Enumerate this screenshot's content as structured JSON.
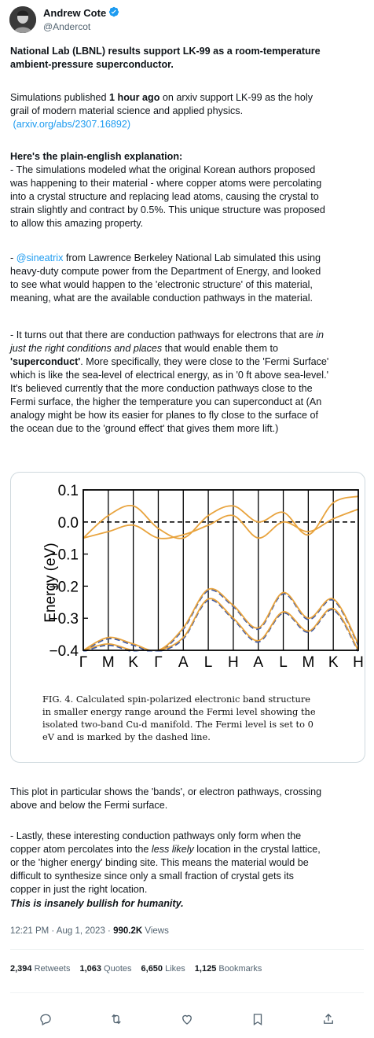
{
  "author": {
    "name": "Andrew Cote",
    "handle": "@Andercot"
  },
  "tweet": {
    "headline_1": "National Lab (LBNL) results support LK-99 as a room-temperature",
    "headline_2": "ambient-pressure superconductor.",
    "p1_a": "Simulations published ",
    "p1_b": "1 hour ago",
    "p1_c": " on arxiv support LK-99 as the holy",
    "p1_2": "grail of modern material science and applied physics.",
    "p1_link": "(arxiv.org/abs/2307.16892)",
    "plain_heading": "Here's the plain-english explanation:",
    "p2_1": "- The simulations modeled what the original Korean authors proposed",
    "p2_2": "was happening to their material - where copper atoms were percolating",
    "p2_3": "into a crystal structure and replacing lead atoms, causing the crystal to",
    "p2_4": "strain slightly and contract by 0.5%. This unique structure was proposed",
    "p2_5": "to allow this amazing property.",
    "p3_mention": "@sineatrix",
    "p3_1": "- ",
    "p3_1b": " from Lawrence Berkeley National Lab simulated this using",
    "p3_2": "heavy-duty compute power from the Department of Energy, and looked",
    "p3_3": "to see what would happen to the 'electronic structure' of this material,",
    "p3_4": "meaning, what are the available conduction pathways in the material.",
    "p4_1a": "- It turns out that there are conduction pathways for electrons that are ",
    "p4_1b": "in",
    "p4_2a": "just the right conditions and places",
    "p4_2b": " that would enable them to",
    "p4_3a": "'superconduct'",
    "p4_3b": ". More specifically, they were close to the 'Fermi Surface'",
    "p4_4": "which is like the sea-level of electrical energy, as in '0 ft above sea-level.'",
    "p4_5": "It's believed currently that the more conduction pathways close to the",
    "p4_6": "Fermi surface, the higher the temperature you can superconduct at (An",
    "p4_7": "analogy might be how its easier for planes to fly close to the surface of",
    "p4_8": "the ocean due to the 'ground effect' that gives them more lift.)",
    "p5_1": "This plot in particular shows the 'bands', or electron pathways, crossing",
    "p5_2": "above and below the Fermi surface.",
    "p6_1": "- Lastly, these interesting conduction pathways only form when the",
    "p6_2a": "copper atom percolates into the ",
    "p6_2b": "less likely",
    "p6_2c": " location in the crystal lattice,",
    "p6_3": "or the 'higher energy' binding site. This means the material would be",
    "p6_4": "difficult to synthesize since only a small fraction of crystal gets its",
    "p6_5": "copper in just the right location.",
    "closing": "This is insanely bullish for humanity."
  },
  "figure": {
    "ylabel": "Energy (eV)",
    "yticks": [
      "0.1",
      "0.0",
      "−0.1",
      "−0.2",
      "−0.3",
      "−0.4"
    ],
    "xticks": [
      "Γ",
      "M",
      "K",
      "Γ",
      "A",
      "L",
      "H",
      "A",
      "L",
      "M",
      "K",
      "H"
    ],
    "caption_1": "FIG. 4.  Calculated spin-polarized electronic band structure",
    "caption_2": "in smaller energy range around the Fermi level showing the",
    "caption_3": "isolated two-band Cu-d manifold.  The Fermi level is set to 0",
    "caption_4": "eV and is marked by the dashed line.",
    "colors": {
      "band_up": "#e8a33d",
      "band_down": "#3b57a3"
    }
  },
  "chart_data": {
    "type": "line",
    "ylabel": "Energy (eV)",
    "ylim": [
      -0.4,
      0.1
    ],
    "categories": [
      "Γ",
      "M",
      "K",
      "Γ",
      "A",
      "L",
      "H",
      "A",
      "L",
      "M",
      "K",
      "H"
    ],
    "fermi_level": 0.0,
    "series": [
      {
        "values": [
          -0.05,
          0.02,
          0.05,
          -0.02,
          -0.05,
          0.02,
          0.05,
          0.0,
          0.03,
          -0.04,
          0.06,
          0.08
        ]
      },
      {
        "values": [
          -0.05,
          -0.03,
          -0.01,
          -0.05,
          -0.04,
          -0.01,
          0.02,
          -0.05,
          0.0,
          -0.03,
          0.01,
          0.04
        ]
      },
      {
        "values": [
          -0.4,
          -0.36,
          -0.38,
          -0.4,
          -0.33,
          -0.21,
          -0.26,
          -0.33,
          -0.22,
          -0.3,
          -0.24,
          -0.38
        ]
      },
      {
        "values": [
          -0.4,
          -0.38,
          -0.4,
          -0.4,
          -0.36,
          -0.24,
          -0.3,
          -0.37,
          -0.28,
          -0.34,
          -0.27,
          -0.4
        ]
      }
    ]
  },
  "meta": {
    "time": "12:21 PM · Aug 1, 2023 · ",
    "views": "990.2K",
    "views_label": " Views"
  },
  "stats": {
    "retweets": "2,394",
    "retweets_label": "Retweets",
    "quotes": "1,063",
    "quotes_label": "Quotes",
    "likes": "6,650",
    "likes_label": "Likes",
    "bookmarks": "1,125",
    "bookmarks_label": "Bookmarks"
  },
  "actions": [
    "reply-icon",
    "retweet-icon",
    "like-icon",
    "bookmark-icon",
    "share-icon"
  ]
}
